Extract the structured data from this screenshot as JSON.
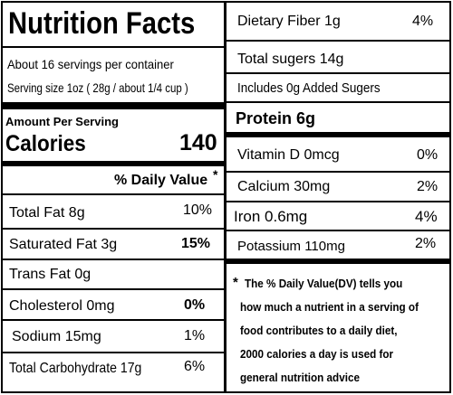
{
  "left": {
    "title": "Nutrition Facts",
    "servings": "About 16 servings per container",
    "serving_size": "Serving size 1oz ( 28g / about 1/4 cup )",
    "amount_per_serving": "Amount Per Serving",
    "calories_label": "Calories",
    "calories_value": "140",
    "daily_value_header": "% Daily Value",
    "daily_value_star": "*",
    "rows": [
      {
        "label": "Total Fat  8g",
        "value": "10%"
      },
      {
        "label": "Saturated Fat  3g",
        "value": "15%"
      },
      {
        "label": "Trans Fat 0g",
        "value": ""
      },
      {
        "label": "Cholesterol  0mg",
        "value": "0%"
      },
      {
        "label": "Sodium  15mg",
        "value": "1%"
      },
      {
        "label": "Total Carbohydrate  17g",
        "value": "6%"
      }
    ]
  },
  "right": {
    "rows": [
      {
        "label": "Dietary Fiber  1g",
        "value": "4%"
      },
      {
        "label": "Total sugers 14g",
        "value": ""
      },
      {
        "label": "Includes 0g Added Sugers",
        "value": ""
      },
      {
        "label": "Protein 6g",
        "value": ""
      },
      {
        "label": "Vitamin D 0mcg",
        "value": "0%"
      },
      {
        "label": "Calcium  30mg",
        "value": "2%"
      },
      {
        "label": "Iron  0.6mg",
        "value": "4%"
      },
      {
        "label": "Potassium 110mg",
        "value": "2%"
      }
    ],
    "footnote_star": "*",
    "footnote_lines": [
      "The % Daily Value(DV)  tells you",
      "how much a nutrient in a serving of",
      "food contributes to a daily diet,",
      "2000 calories a day is used for",
      "general nutrition advice"
    ]
  }
}
